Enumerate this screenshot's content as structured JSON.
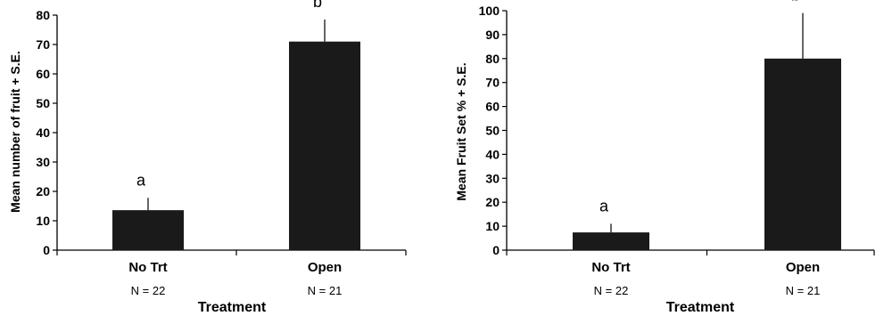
{
  "chart_data": [
    {
      "type": "bar",
      "categories": [
        "No Trt",
        "Open"
      ],
      "sample_sizes": [
        "N = 22",
        "N = 21"
      ],
      "values": [
        13.6,
        71
      ],
      "errors": [
        4.2,
        7.5
      ],
      "significance": [
        "a",
        "b"
      ],
      "xlabel": "Treatment",
      "ylabel": "Mean number of fruit + S.E.",
      "ylim": [
        0,
        80
      ],
      "yticks": [
        0,
        10,
        20,
        30,
        40,
        50,
        60,
        70,
        80
      ],
      "grid": false,
      "bar_color": "#1a1a1a"
    },
    {
      "type": "bar",
      "categories": [
        "No Trt",
        "Open"
      ],
      "sample_sizes": [
        "N = 22",
        "N = 21"
      ],
      "values": [
        7.4,
        80
      ],
      "errors": [
        3.6,
        19
      ],
      "significance": [
        "a",
        "b"
      ],
      "xlabel": "Treatment",
      "ylabel": "Mean Fruit Set % + S.E.",
      "ylim": [
        0,
        100
      ],
      "yticks": [
        0,
        10,
        20,
        30,
        40,
        50,
        60,
        70,
        80,
        90,
        100
      ],
      "grid": false,
      "bar_color": "#1a1a1a"
    }
  ]
}
